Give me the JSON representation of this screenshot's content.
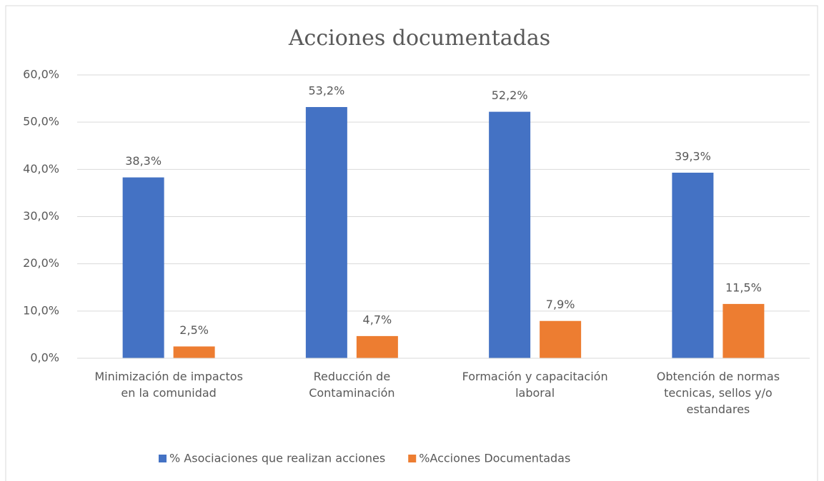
{
  "chart_data": {
    "type": "bar",
    "title": "Acciones documentadas",
    "categories": [
      "Minimización de impactos en la comunidad",
      "Reducción de Contaminación",
      "Formación y capacitación laboral",
      "Obtención de normas tecnicas, sellos y/o estandares"
    ],
    "series": [
      {
        "name": "% Asociaciones que realizan acciones",
        "color": "#4472c4",
        "values": [
          38.3,
          53.2,
          52.2,
          39.3
        ],
        "value_labels": [
          "38,3%",
          "53,2%",
          "52,2%",
          "39,3%"
        ]
      },
      {
        "name": "%Acciones Documentadas",
        "color": "#ed7d31",
        "values": [
          2.5,
          4.7,
          7.9,
          11.5
        ],
        "value_labels": [
          "2,5%",
          "4,7%",
          "7,9%",
          "11,5%"
        ]
      }
    ],
    "ylim": [
      0,
      60
    ],
    "yticks": [
      {
        "value": 0,
        "label": "0,0%"
      },
      {
        "value": 10,
        "label": "10,0%"
      },
      {
        "value": 20,
        "label": "20,0%"
      },
      {
        "value": 30,
        "label": "30,0%"
      },
      {
        "value": 40,
        "label": "40,0%"
      },
      {
        "value": 50,
        "label": "50,0%"
      },
      {
        "value": 60,
        "label": "60,0%"
      }
    ],
    "grid": true,
    "legend": "bottom"
  }
}
